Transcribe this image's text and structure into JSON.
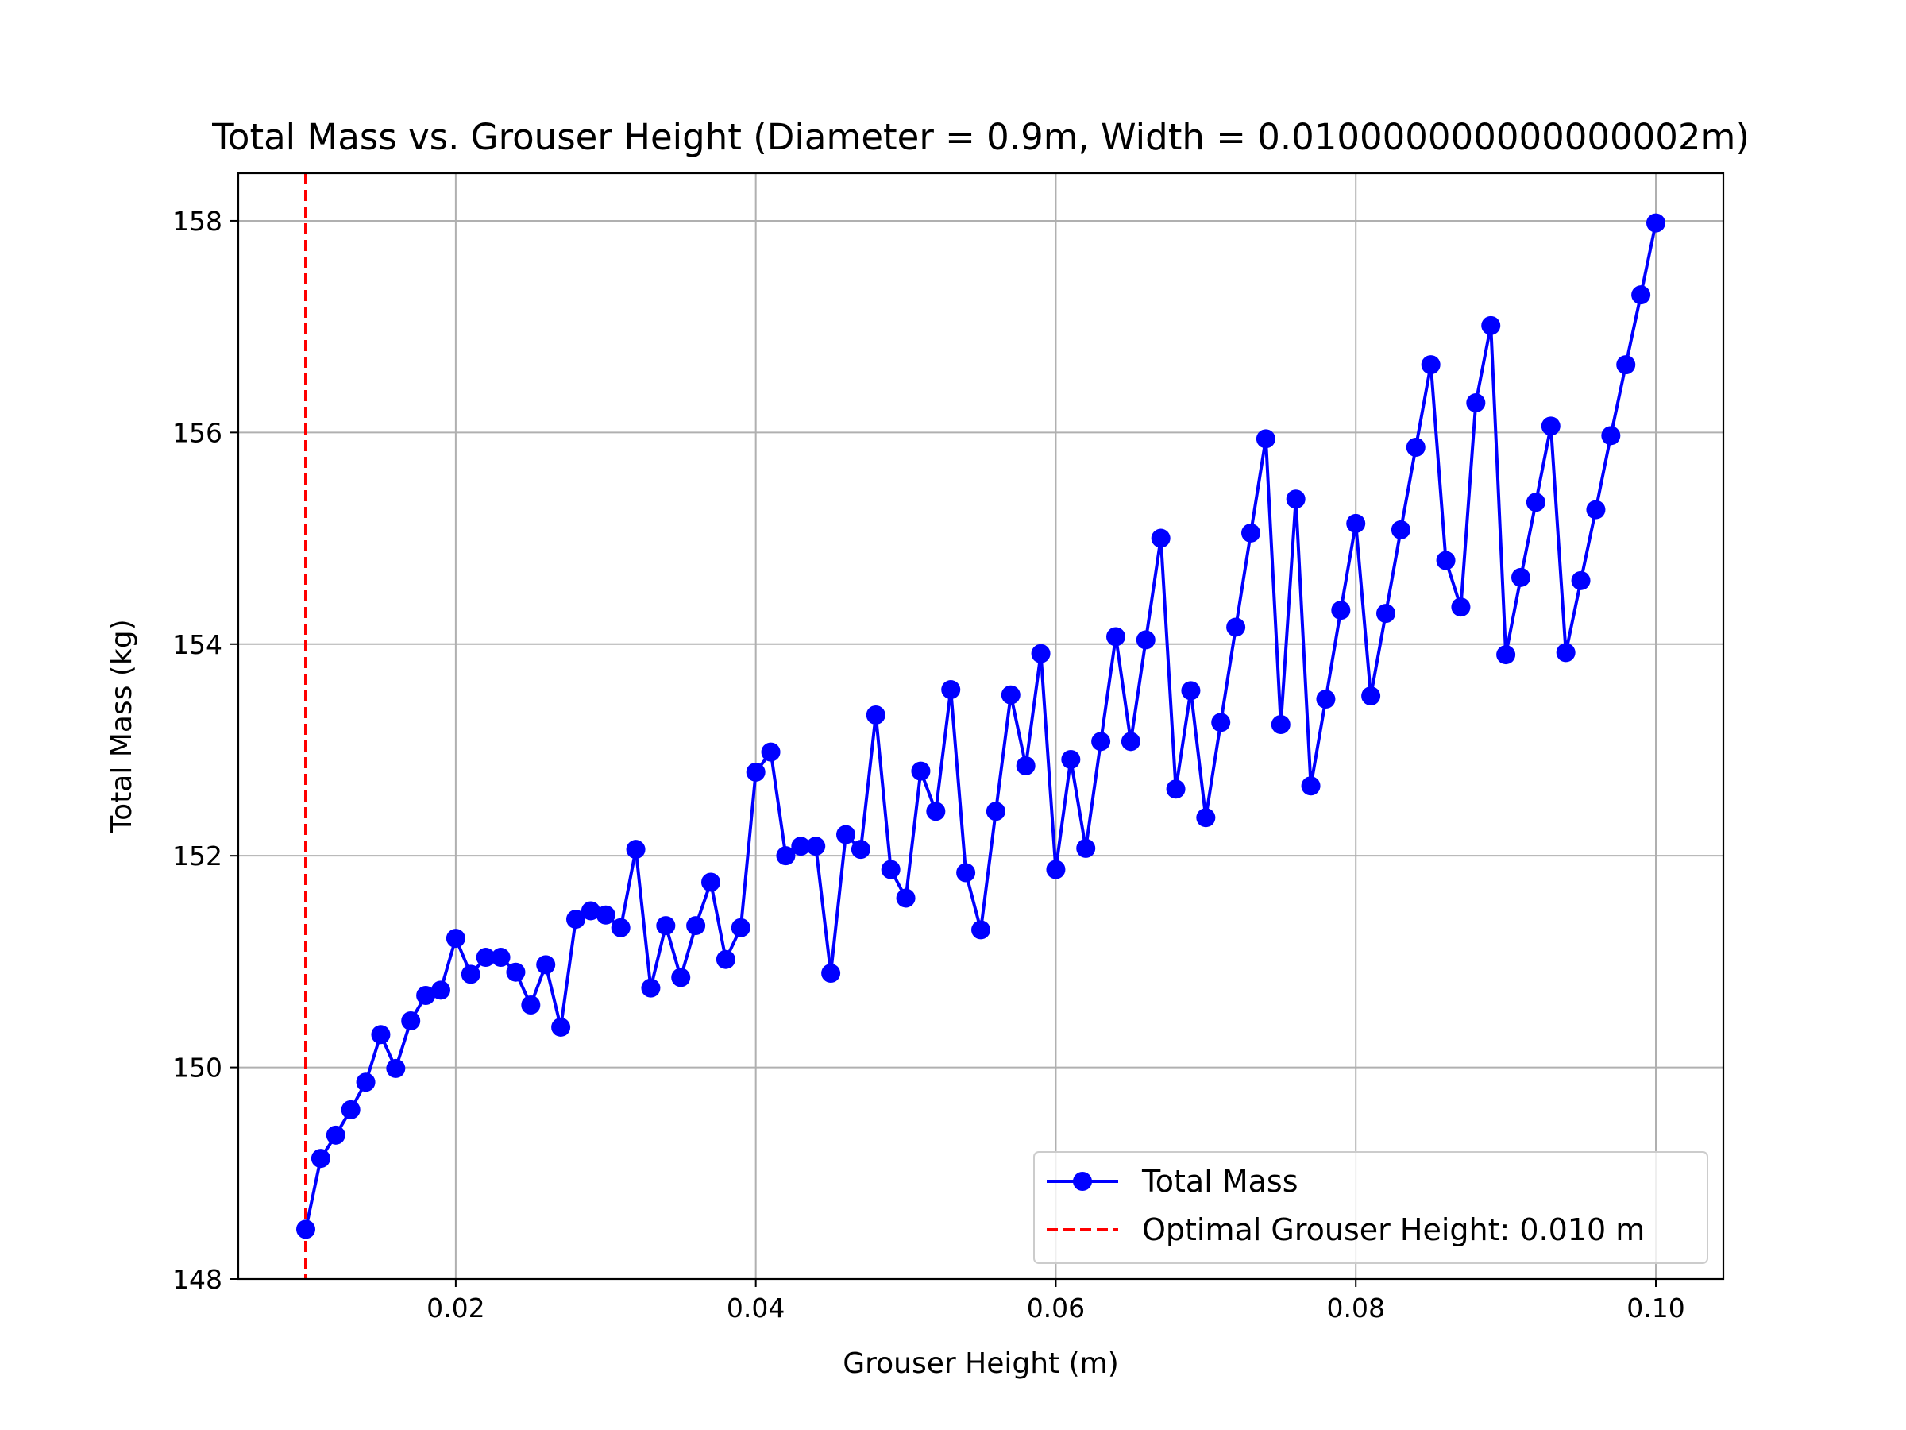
{
  "chart_data": {
    "type": "line",
    "title": "Total Mass vs. Grouser Height (Diameter = 0.9m, Width = 0.010000000000000002m)",
    "xlabel": "Grouser Height (m)",
    "ylabel": "Total Mass (kg)",
    "xlim": [
      0.0055,
      0.1045
    ],
    "ylim": [
      148,
      158.45
    ],
    "x_ticks": [
      0.02,
      0.04,
      0.06,
      0.08,
      0.1
    ],
    "x_tick_labels": [
      "0.02",
      "0.04",
      "0.06",
      "0.08",
      "0.10"
    ],
    "y_ticks": [
      148,
      150,
      152,
      154,
      156,
      158
    ],
    "y_tick_labels": [
      "148",
      "150",
      "152",
      "154",
      "156",
      "158"
    ],
    "grid": true,
    "legend_position": "lower-right",
    "series": [
      {
        "name": "Total Mass",
        "color": "#0000ff",
        "marker": "circle",
        "x": [
          0.01,
          0.011,
          0.012,
          0.013,
          0.014,
          0.015,
          0.016,
          0.017,
          0.018,
          0.019,
          0.02,
          0.021,
          0.022,
          0.023,
          0.024,
          0.025,
          0.026,
          0.027,
          0.028,
          0.029,
          0.03,
          0.031,
          0.032,
          0.033,
          0.034,
          0.035,
          0.036,
          0.037,
          0.038,
          0.039,
          0.04,
          0.041,
          0.042,
          0.043,
          0.044,
          0.045,
          0.046,
          0.047,
          0.048,
          0.049,
          0.05,
          0.051,
          0.052,
          0.053,
          0.054,
          0.055,
          0.056,
          0.057,
          0.058,
          0.059,
          0.06,
          0.061,
          0.062,
          0.063,
          0.064,
          0.065,
          0.066,
          0.067,
          0.068,
          0.069,
          0.07,
          0.071,
          0.072,
          0.073,
          0.074,
          0.075,
          0.076,
          0.077,
          0.078,
          0.079,
          0.08,
          0.081,
          0.082,
          0.083,
          0.084,
          0.085,
          0.086,
          0.087,
          0.088,
          0.089,
          0.09,
          0.091,
          0.092,
          0.093,
          0.094,
          0.095,
          0.096,
          0.097,
          0.098,
          0.099,
          0.1
        ],
        "y": [
          148.47,
          149.14,
          149.36,
          149.6,
          149.86,
          150.31,
          149.99,
          150.44,
          150.68,
          150.73,
          151.22,
          150.88,
          151.04,
          151.04,
          150.9,
          150.59,
          150.97,
          150.38,
          151.4,
          151.48,
          151.44,
          151.32,
          152.06,
          150.75,
          151.34,
          150.85,
          151.34,
          151.75,
          151.02,
          151.32,
          152.79,
          152.98,
          152.0,
          152.09,
          152.09,
          150.89,
          152.2,
          152.06,
          153.33,
          151.87,
          151.6,
          152.8,
          152.42,
          153.57,
          151.84,
          151.3,
          152.42,
          153.52,
          152.85,
          153.91,
          151.87,
          152.91,
          152.07,
          153.08,
          154.07,
          153.08,
          154.04,
          155.0,
          152.63,
          153.56,
          152.36,
          153.26,
          154.16,
          155.05,
          155.94,
          153.24,
          155.37,
          152.66,
          153.48,
          154.32,
          155.14,
          153.51,
          154.29,
          155.08,
          155.86,
          156.64,
          154.79,
          154.35,
          156.28,
          157.01,
          153.9,
          154.63,
          155.34,
          156.06,
          153.92,
          154.6,
          155.27,
          155.97,
          156.64,
          157.3,
          157.98
        ]
      },
      {
        "name": "Optimal Grouser Height: 0.010 m",
        "color": "#ff0000",
        "style": "dashed",
        "vertical_line_x": 0.01
      }
    ]
  }
}
